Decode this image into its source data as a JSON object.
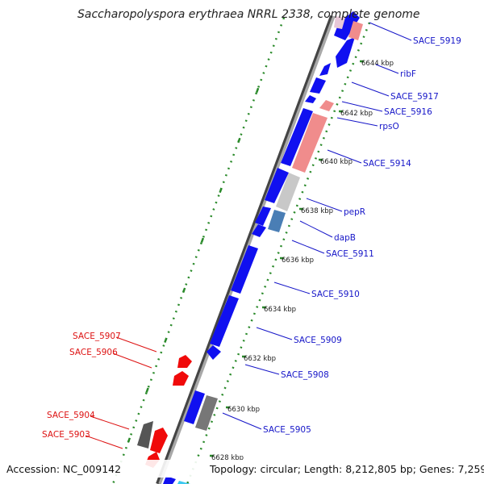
{
  "title": "Saccharopolyspora erythraea NRRL 2338, complete genome",
  "footer": {
    "accession": "Accession: NC_009142",
    "topology": "Topology: circular; Length: 8,212,805 bp; Genes: 7,259"
  },
  "colors": {
    "backbone": "#888888",
    "forward_cds": "#1010f0",
    "reverse_cds": "#f00a0a",
    "rrna_light": "#f08c8c",
    "pseudo_grey": "#777777",
    "light_grey": "#c8c8c8",
    "steel": "#4a7eb5",
    "cyan": "#3cc8f0",
    "gc_dots": "#2a8a2a",
    "fwd_label": "#1515c8",
    "rev_label": "#dd1111"
  },
  "ticks": [
    {
      "label": "6644 kbp"
    },
    {
      "label": "6642 kbp"
    },
    {
      "label": "6640 kbp"
    },
    {
      "label": "6638 kbp"
    },
    {
      "label": "6636 kbp"
    },
    {
      "label": "6634 kbp"
    },
    {
      "label": "6632 kbp"
    },
    {
      "label": "6630 kbp"
    },
    {
      "label": "6628 kbp"
    }
  ],
  "right_labels": [
    {
      "text": "SACE_5919"
    },
    {
      "text": "ribF"
    },
    {
      "text": "SACE_5917"
    },
    {
      "text": "SACE_5916"
    },
    {
      "text": "rpsO"
    },
    {
      "text": "SACE_5914"
    },
    {
      "text": "pepR"
    },
    {
      "text": "dapB"
    },
    {
      "text": "SACE_5911"
    },
    {
      "text": "SACE_5910"
    },
    {
      "text": "SACE_5909"
    },
    {
      "text": "SACE_5908"
    },
    {
      "text": "SACE_5905"
    }
  ],
  "left_labels": [
    {
      "text": "SACE_5907"
    },
    {
      "text": "SACE_5906"
    },
    {
      "text": "SACE_5904"
    },
    {
      "text": "SACE_5903"
    }
  ]
}
